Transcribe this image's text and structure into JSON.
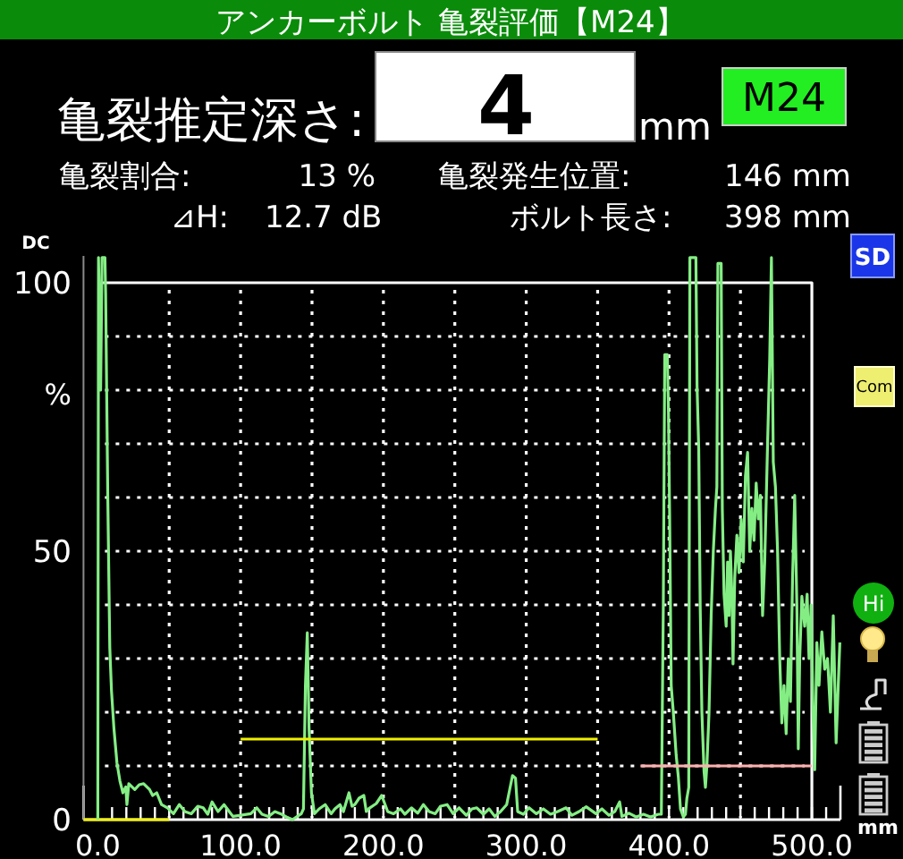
{
  "chart_data": {
    "type": "line",
    "title": "アンカーボルト 亀裂評価【M24】",
    "xlabel": "mm",
    "ylabel": "%",
    "annotations": [
      "亀裂推定深さ:",
      "4",
      "mm",
      "M24",
      "亀裂割合:",
      "13 %",
      "亀裂発生位置:",
      "146 mm",
      "⊿H:",
      "12.7 dB",
      "ボルト長さ:",
      "398 mm",
      "DC",
      "SD",
      "Com",
      "Hi"
    ],
    "xlim": [
      -10,
      520
    ],
    "ylim": [
      0,
      105
    ],
    "xticks": [
      {
        "value": 0,
        "label": "0.0"
      },
      {
        "value": 50,
        "label": null
      },
      {
        "value": 100,
        "label": "100.0"
      },
      {
        "value": 150,
        "label": null
      },
      {
        "value": 200,
        "label": "200.0"
      },
      {
        "value": 250,
        "label": null
      },
      {
        "value": 300,
        "label": "300.0"
      },
      {
        "value": 350,
        "label": null
      },
      {
        "value": 400,
        "label": "400.0"
      },
      {
        "value": 450,
        "label": null
      },
      {
        "value": 500,
        "label": "500.0"
      }
    ],
    "yticks": [
      0,
      {
        "value": 10,
        "label": null
      },
      {
        "value": 20,
        "label": null
      },
      {
        "value": 30,
        "label": null
      },
      {
        "value": 40,
        "label": null
      },
      50,
      {
        "value": 60,
        "label": null
      },
      {
        "value": 70,
        "label": null
      },
      {
        "value": 80,
        "label": null
      },
      {
        "value": 90,
        "label": null
      },
      100
    ],
    "grid": true,
    "series": [
      {
        "color": "#ffffff",
        "x": [
          3,
          500,
          500
        ],
        "values": [
          100,
          100,
          0
        ]
      },
      {
        "color": "#f0f000",
        "x": [
          -10,
          50
        ],
        "values": [
          0,
          0
        ]
      },
      {
        "color": "#84ee84",
        "x": [
          0,
          0.5,
          2,
          3,
          5,
          5.5,
          7,
          8.4,
          9.6,
          11.3,
          13.4,
          15.5,
          17.6,
          19.6,
          20.4,
          21.7,
          25.9,
          29,
          32.1,
          36.3,
          38.4,
          41.3,
          44.6,
          48.8,
          53,
          57.1,
          61,
          65.5,
          70,
          73.8,
          77,
          80,
          84.2,
          88.4,
          94.6,
          100,
          107.1,
          111.3,
          115,
          119.6,
          124,
          128,
          132,
          136.3,
          142.5,
          144,
          145.4,
          146.7,
          147.9,
          149.6,
          151.7,
          155,
          159.2,
          163.4,
          166,
          169.6,
          172,
          175.9,
          178,
          180,
          183,
          186.3,
          188,
          190.5,
          195,
          198.8,
          203,
          207.1,
          212,
          215,
          219.6,
          224,
          228,
          232,
          236.3,
          240,
          244.6,
          248.8,
          253,
          258,
          262,
          265.4,
          270,
          274,
          278,
          282,
          286.3,
          290.4,
          292.5,
          294,
          298,
          302,
          307.1,
          312,
          317,
          322,
          327.9,
          332,
          337,
          342,
          348.8,
          353,
          358,
          362,
          365.4,
          367,
          372,
          377,
          382.1,
          387,
          392.5,
          394.6,
          396,
          397,
          398.8,
          399.6,
          400.4,
          401.5,
          403,
          405,
          406.5,
          408,
          410,
          411.5,
          412.5,
          413.8,
          414.6,
          418.8,
          419.6,
          420.8,
          421.8,
          423,
          424.5,
          425.5,
          426.5,
          428,
          429.5,
          431,
          432.5,
          433.5,
          434.2,
          436.5,
          437.3,
          438.5,
          440,
          441,
          442,
          443,
          444,
          444.8,
          446,
          447.5,
          449,
          450.5,
          452,
          453.5,
          455,
          456.5,
          458,
          459.5,
          461,
          462.5,
          464,
          465.5,
          467,
          469,
          470.5,
          471.7,
          473,
          474.5,
          476,
          477.5,
          479,
          480.5,
          482,
          483.5,
          485,
          486.5,
          488,
          489.5,
          490.5,
          491.5,
          493,
          495,
          496.7,
          498,
          499.5,
          500.8,
          502,
          503.5,
          505,
          507,
          509,
          511,
          513,
          515,
          517,
          519.6
        ],
        "values": [
          0,
          104.7,
          80,
          104.7,
          104.7,
          98,
          60,
          32,
          24,
          17,
          10.6,
          7.2,
          5,
          6.1,
          2.8,
          6.7,
          5.6,
          6.5,
          6.7,
          5.6,
          4.5,
          5,
          2.8,
          2.2,
          1.1,
          2.8,
          1.5,
          1.1,
          2.5,
          2.2,
          1,
          3.3,
          1.5,
          2.8,
          0.6,
          0.8,
          1.1,
          2.2,
          1,
          0.6,
          1.5,
          1.1,
          0.5,
          0,
          1.1,
          2,
          25,
          34.8,
          17.2,
          5,
          1.1,
          2,
          2.8,
          1.1,
          2,
          2.8,
          1.5,
          5,
          2.5,
          2.8,
          4,
          4.5,
          1.5,
          2.2,
          3,
          4.5,
          1.5,
          1.1,
          2,
          1,
          2.2,
          1.2,
          2.8,
          1.5,
          1.1,
          2.5,
          2.8,
          1.1,
          2.2,
          0.8,
          2,
          2.2,
          1,
          2,
          0.6,
          1.5,
          2.8,
          8.2,
          7.7,
          1.5,
          1,
          2.2,
          1.1,
          2,
          1,
          1.5,
          2.2,
          0.8,
          1.5,
          2.4,
          1.1,
          2,
          0.8,
          1.5,
          3.3,
          0.6,
          1.2,
          0.5,
          1,
          0.5,
          1,
          1,
          40,
          86.6,
          86.6,
          76,
          57,
          25,
          20,
          12,
          8,
          2,
          0.5,
          1,
          4,
          6,
          104.7,
          104.7,
          81,
          69,
          40,
          20,
          9,
          6,
          10,
          20,
          38,
          50,
          58,
          62,
          103.6,
          103.6,
          58,
          42,
          36,
          48,
          38,
          50,
          42,
          29,
          45,
          53,
          46,
          56,
          48,
          64,
          68.4,
          50,
          58,
          52,
          62.7,
          56,
          60.4,
          38,
          48,
          70,
          86,
          104.7,
          66.6,
          62,
          50,
          30,
          18,
          25,
          16,
          30,
          22,
          45,
          60.4,
          40,
          13.2,
          30,
          41.6,
          36,
          42,
          30,
          40,
          20,
          9.3,
          33,
          25,
          35,
          28,
          30,
          20,
          38,
          14.3,
          33
        ]
      },
      {
        "color": "#f0f000",
        "x": [
          100,
          350
        ],
        "values": [
          15,
          15
        ]
      },
      {
        "color": "#ffb0b0",
        "x": [
          380,
          500
        ],
        "values": [
          10,
          10
        ]
      }
    ]
  }
}
